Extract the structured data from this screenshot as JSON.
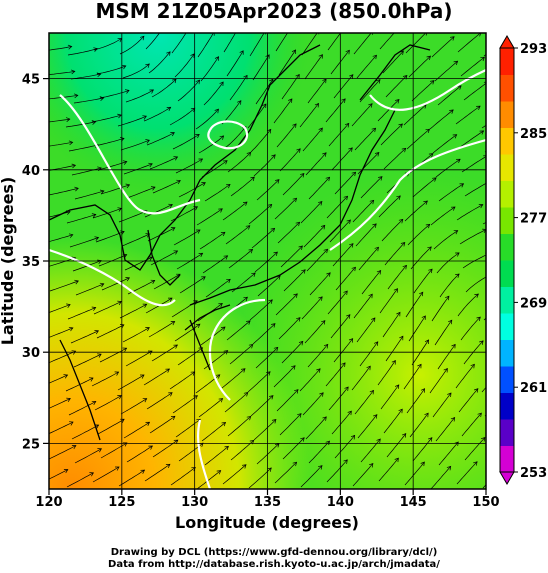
{
  "title": "MSM 21Z05Apr2023 (850.0hPa)",
  "x_axis": {
    "label": "Longitude (degrees)",
    "ticks": [
      "120",
      "125",
      "130",
      "135",
      "140",
      "145",
      "150"
    ],
    "tick_values": [
      120,
      125,
      130,
      135,
      140,
      145,
      150
    ]
  },
  "y_axis": {
    "label": "Latitude  (degrees)",
    "ticks": [
      "25",
      "30",
      "35",
      "40",
      "45"
    ],
    "tick_values": [
      25,
      30,
      35,
      40,
      45
    ]
  },
  "map": {
    "lon_range": [
      120,
      150
    ],
    "lat_range": [
      22.5,
      47.5
    ]
  },
  "colorbar": {
    "ticks": [
      "293",
      "285",
      "277",
      "269",
      "261",
      "253"
    ],
    "tick_values": [
      293,
      285,
      277,
      269,
      261,
      253
    ],
    "range": [
      253,
      293
    ],
    "colors": [
      "#d400d4",
      "#5a00c8",
      "#0000c8",
      "#0050ff",
      "#00b4ff",
      "#00ffe0",
      "#00f0a0",
      "#00dc50",
      "#28dc28",
      "#78e600",
      "#b4f000",
      "#e6e600",
      "#ffc800",
      "#ff8c00",
      "#ff5000",
      "#ff2000"
    ]
  },
  "footer": {
    "line1": "Drawing by DCL (https://www.gfd-dennou.org/library/dcl/)",
    "line2": "Data from http://database.rish.kyoto-u.ac.jp/arch/jmadata/"
  }
}
